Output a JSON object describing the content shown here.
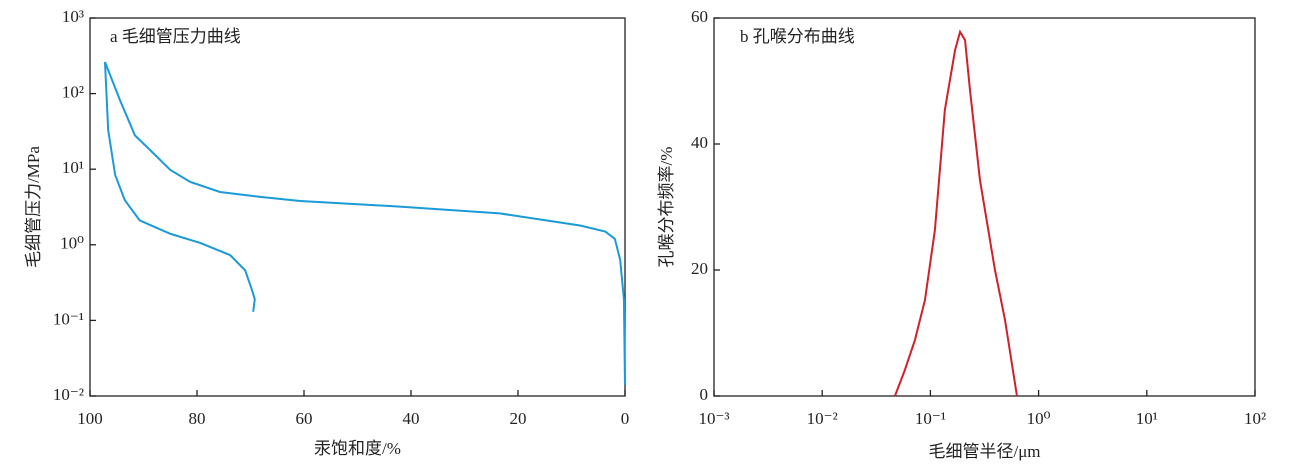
{
  "chart_data": [
    {
      "type": "line",
      "title": "a 毛细管压力曲线",
      "x_label": "汞饱和度/%",
      "y_label": "毛细管压力/MPa",
      "xlim": [
        100,
        0
      ],
      "xticks": [
        100,
        80,
        60,
        40,
        20,
        0
      ],
      "ylim": [
        0.01,
        1000
      ],
      "yscale": "log",
      "yticks": [
        {
          "value": 0.01,
          "label": "10⁻²"
        },
        {
          "value": 0.1,
          "label": "10⁻¹"
        },
        {
          "value": 1,
          "label": "10⁰"
        },
        {
          "value": 10,
          "label": "10¹"
        },
        {
          "value": 100,
          "label": "10²"
        },
        {
          "value": 1000,
          "label": "10³"
        }
      ],
      "series": [
        {
          "color": "#1a9ad6",
          "x": [
            97.2,
            94.4,
            91.6,
            88.8,
            85.0,
            81.3,
            75.7,
            68.2,
            60.7,
            42.1,
            23.4,
            8.4,
            3.7,
            1.9,
            0.9,
            0.2,
            0
          ],
          "values": [
            262,
            82,
            28,
            18,
            9.8,
            6.8,
            5.0,
            4.3,
            3.8,
            3.2,
            2.6,
            1.8,
            1.5,
            1.2,
            0.63,
            0.19,
            0.014
          ]
        },
        {
          "color": "#1a9ad6",
          "x": [
            97.2,
            96.6,
            95.3,
            93.5,
            90.7,
            85.0,
            79.4,
            73.8,
            71.0,
            69.7,
            69.2,
            69.5
          ],
          "values": [
            262,
            33,
            8.4,
            3.9,
            2.1,
            1.4,
            1.06,
            0.73,
            0.46,
            0.25,
            0.19,
            0.13
          ]
        }
      ]
    },
    {
      "type": "line",
      "title": "b 孔喉分布曲线",
      "x_label": "毛细管半径/μm",
      "y_label": "孔喉分布频率/%",
      "xlim": [
        0.001,
        100
      ],
      "xscale": "log",
      "xticks": [
        {
          "value": 0.001,
          "label": "10⁻³"
        },
        {
          "value": 0.01,
          "label": "10⁻²"
        },
        {
          "value": 0.1,
          "label": "10⁻¹"
        },
        {
          "value": 1,
          "label": "10⁰"
        },
        {
          "value": 10,
          "label": "10¹"
        },
        {
          "value": 100,
          "label": "10²"
        }
      ],
      "ylim": [
        0,
        60
      ],
      "yticks": [
        0,
        20,
        40,
        60
      ],
      "series": [
        {
          "color": "#d0202a",
          "x": [
            0.047,
            0.058,
            0.072,
            0.089,
            0.11,
            0.136,
            0.169,
            0.188,
            0.209,
            0.232,
            0.287,
            0.395,
            0.489,
            0.631
          ],
          "values": [
            0,
            4.1,
            8.9,
            15.2,
            26.3,
            45.4,
            54.9,
            57.8,
            56.5,
            48.6,
            34.3,
            20.0,
            12.1,
            0
          ]
        }
      ]
    }
  ]
}
